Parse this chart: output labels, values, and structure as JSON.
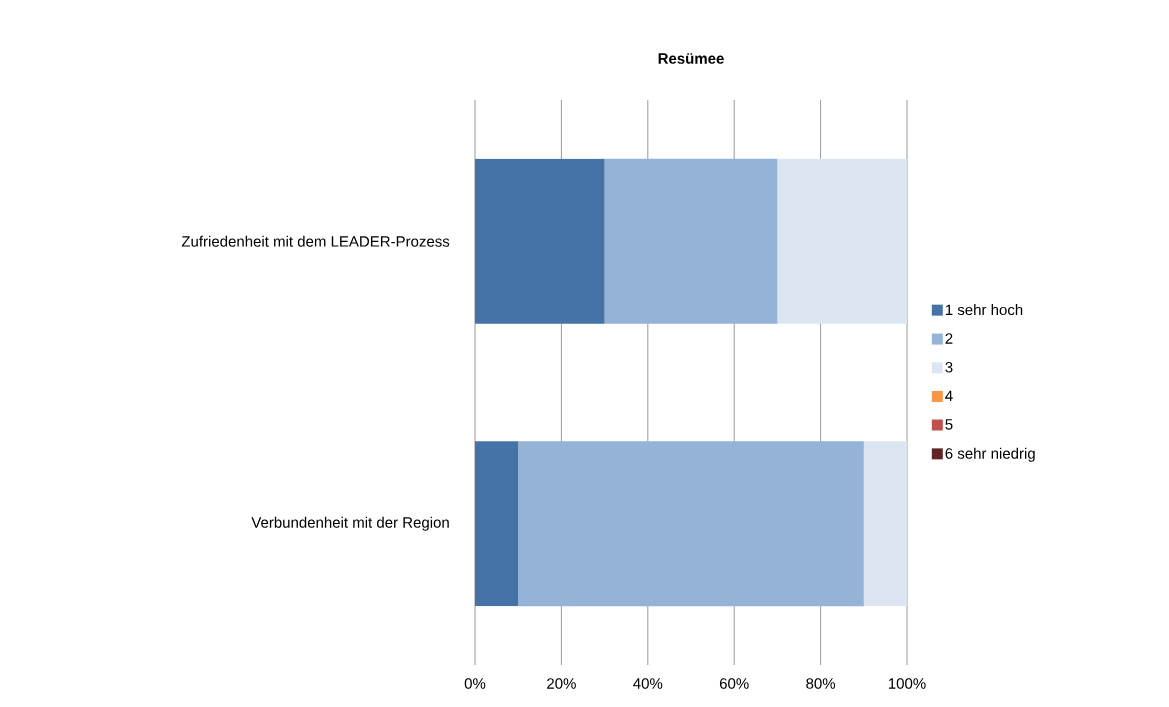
{
  "chart_data": {
    "type": "bar",
    "orientation": "horizontal",
    "stacked": true,
    "title": "Resümee",
    "categories": [
      "Zufriedenheit mit dem LEADER-Prozess",
      "Verbundenheit mit der Region"
    ],
    "series": [
      {
        "name": "1 sehr hoch",
        "color": "#4573a7",
        "values": [
          30,
          10
        ]
      },
      {
        "name": "2",
        "color": "#95b3d7",
        "values": [
          40,
          80
        ]
      },
      {
        "name": "3",
        "color": "#dce6f2",
        "values": [
          30,
          10
        ]
      },
      {
        "name": "4",
        "color": "#f79646",
        "values": [
          0,
          0
        ]
      },
      {
        "name": "5",
        "color": "#c0504d",
        "values": [
          0,
          0
        ]
      },
      {
        "name": "6 sehr niedrig",
        "color": "#632523",
        "values": [
          0,
          0
        ]
      }
    ],
    "xlim": [
      0,
      100
    ],
    "xticks": [
      {
        "value": 0,
        "label": "0%"
      },
      {
        "value": 20,
        "label": "20%"
      },
      {
        "value": 40,
        "label": "40%"
      },
      {
        "value": 60,
        "label": "60%"
      },
      {
        "value": 80,
        "label": "80%"
      },
      {
        "value": 100,
        "label": "100%"
      }
    ],
    "grid": "x",
    "legend": "right"
  }
}
